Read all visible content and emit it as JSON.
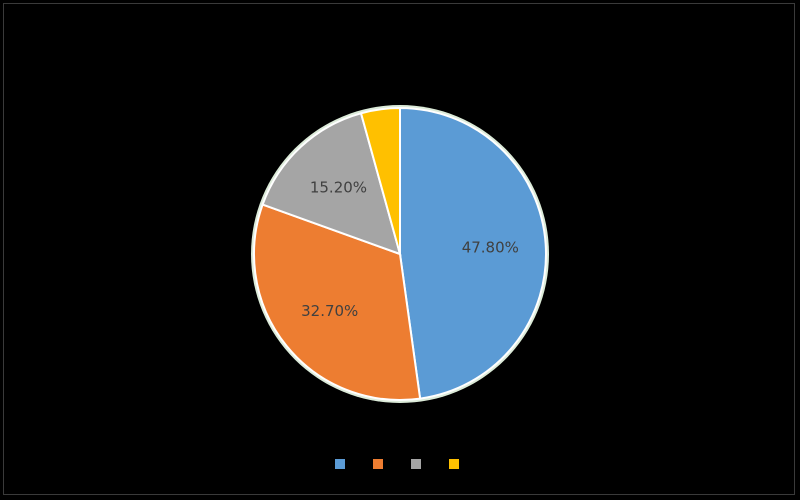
{
  "colors": {
    "background": "#000000",
    "pie_border": "#dcebd9",
    "slice_edge": "#ffffff",
    "label_text": "#404040",
    "title_text": "#111111"
  },
  "chart_data": {
    "type": "pie",
    "title": "",
    "unit_label": "",
    "start_angle_deg": 0,
    "direction": "clockwise",
    "slices": [
      {
        "label": "",
        "value": 47.8,
        "display": "47.80%",
        "color": "#5b9bd5"
      },
      {
        "label": "",
        "value": 32.7,
        "display": "32.70%",
        "color": "#ed7d31"
      },
      {
        "label": "",
        "value": 15.2,
        "display": "15.20%",
        "color": "#a5a5a5"
      },
      {
        "label": "",
        "value": 4.3,
        "display": "",
        "color": "#ffc000"
      }
    ],
    "legend_position": "bottom"
  }
}
